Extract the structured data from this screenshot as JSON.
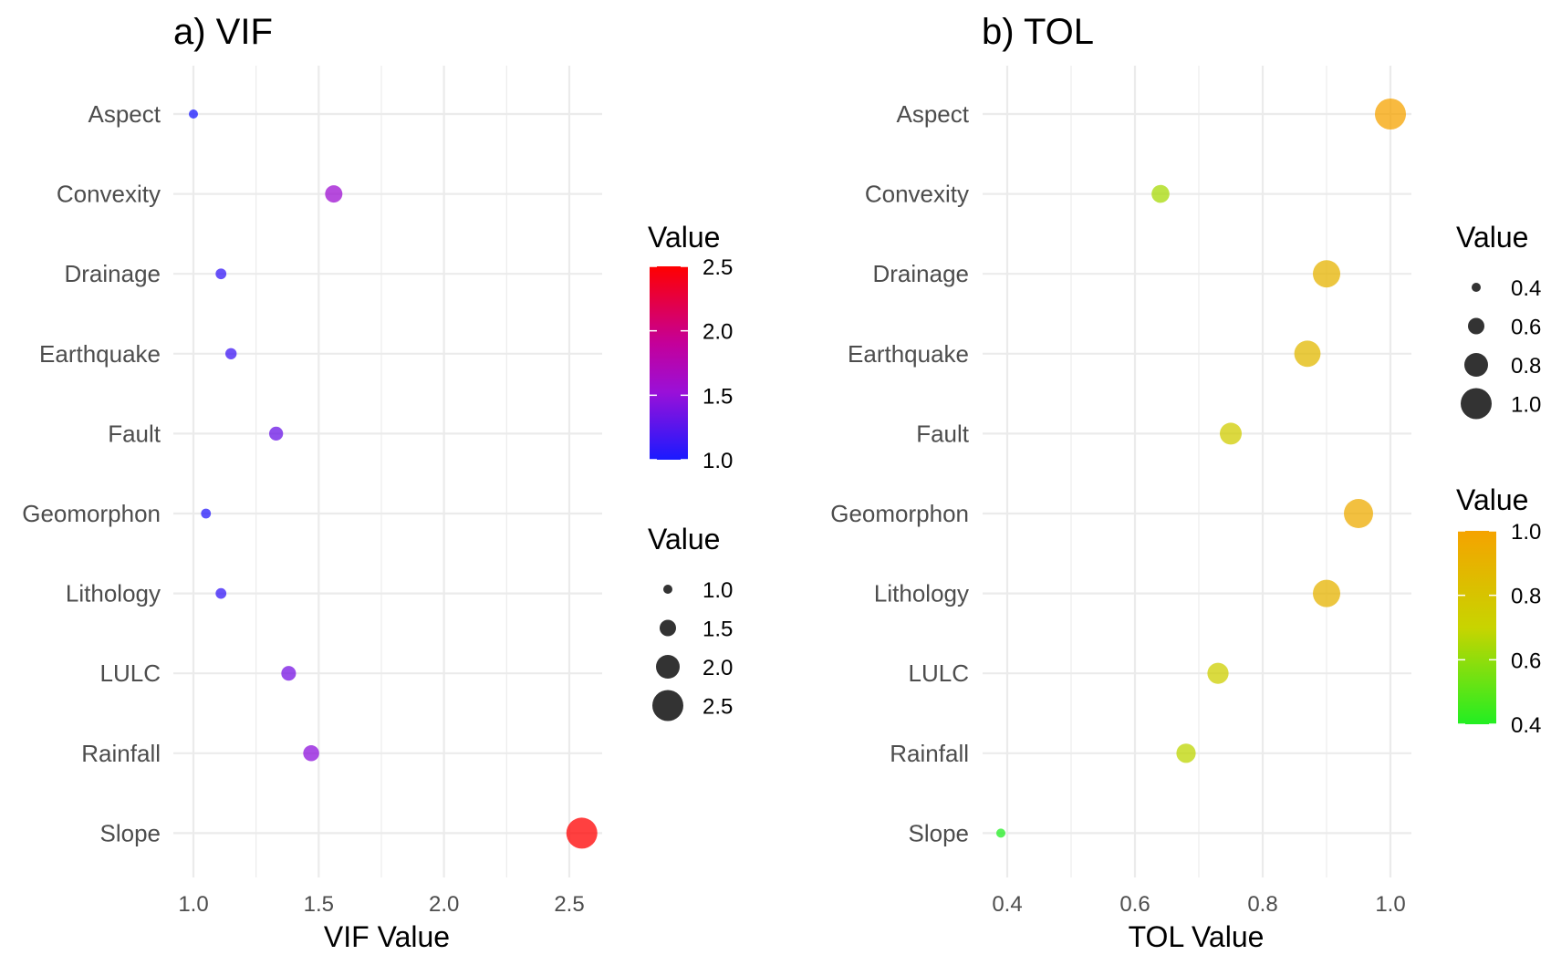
{
  "chart_data": [
    {
      "type": "scatter",
      "title": "a) VIF",
      "xlabel": "VIF Value",
      "ylabel": "",
      "xlim": [
        1.0,
        2.6
      ],
      "xticks": [
        "1.0",
        "1.5",
        "2.0",
        "2.5"
      ],
      "xtick_values": [
        1.0,
        1.5,
        2.0,
        2.5
      ],
      "categories": [
        "Aspect",
        "Convexity",
        "Drainage",
        "Earthquake",
        "Fault",
        "Geomorphon",
        "Lithology",
        "LULC",
        "Rainfall",
        "Slope"
      ],
      "values": [
        1.0,
        1.56,
        1.11,
        1.15,
        1.33,
        1.05,
        1.11,
        1.38,
        1.47,
        2.55
      ],
      "color_legend": {
        "title": "Value",
        "range": [
          1.0,
          2.5
        ],
        "ticks": [
          "2.5",
          "2.0",
          "1.5",
          "1.0"
        ],
        "tick_values": [
          2.5,
          2.0,
          1.5,
          1.0
        ],
        "low_color": "#1a1aff",
        "mid_color": "#b000b0",
        "high_color": "#ff0000"
      },
      "size_legend": {
        "title": "Value",
        "ticks": [
          "1.0",
          "1.5",
          "2.0",
          "2.5"
        ],
        "tick_values": [
          1.0,
          1.5,
          2.0,
          2.5
        ]
      }
    },
    {
      "type": "scatter",
      "title": "b) TOL",
      "xlabel": "TOL Value",
      "ylabel": "",
      "xlim": [
        0.4,
        1.03
      ],
      "xticks": [
        "0.4",
        "0.6",
        "0.8",
        "1.0"
      ],
      "xtick_values": [
        0.4,
        0.6,
        0.8,
        1.0
      ],
      "categories": [
        "Aspect",
        "Convexity",
        "Drainage",
        "Earthquake",
        "Fault",
        "Geomorphon",
        "Lithology",
        "LULC",
        "Rainfall",
        "Slope"
      ],
      "values": [
        1.0,
        0.64,
        0.9,
        0.87,
        0.75,
        0.95,
        0.9,
        0.73,
        0.68,
        0.39
      ],
      "size_legend": {
        "title": "Value",
        "ticks": [
          "0.4",
          "0.6",
          "0.8",
          "1.0"
        ],
        "tick_values": [
          0.4,
          0.6,
          0.8,
          1.0
        ]
      },
      "color_legend": {
        "title": "Value",
        "range": [
          0.4,
          1.0
        ],
        "ticks": [
          "1.0",
          "0.8",
          "0.6",
          "0.4"
        ],
        "tick_values": [
          1.0,
          0.8,
          0.6,
          0.4
        ],
        "low_color": "#22ee22",
        "mid_color": "#c8d400",
        "high_color": "#f5a300"
      }
    }
  ]
}
